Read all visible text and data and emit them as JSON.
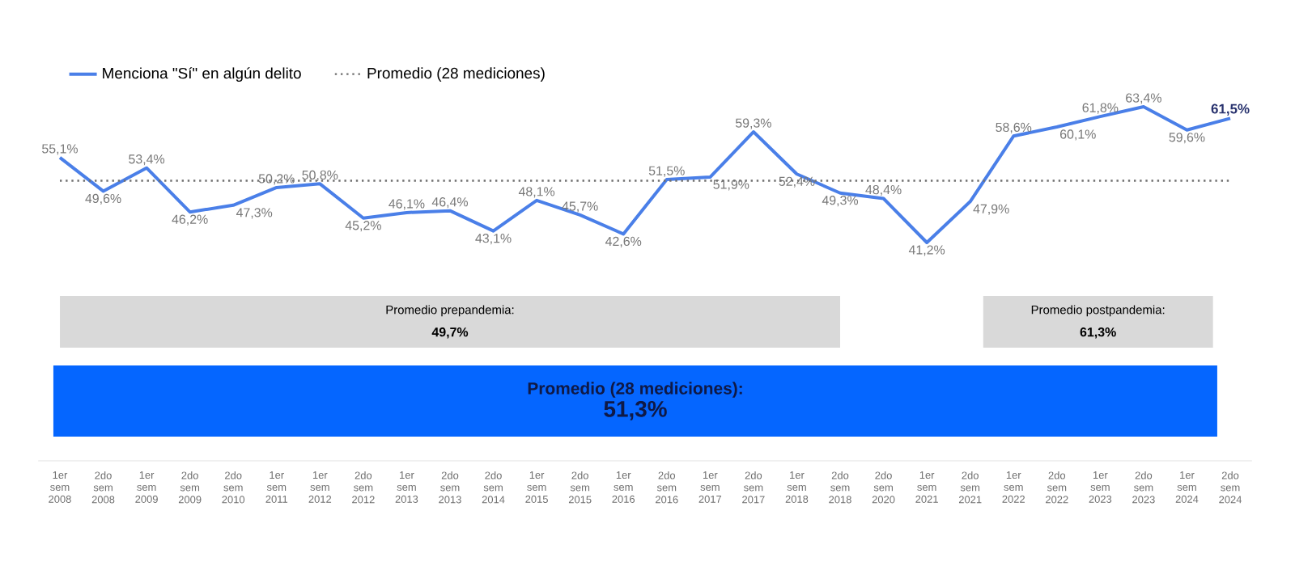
{
  "chart_data": {
    "type": "line",
    "categories": [
      "1er sem 2008",
      "2do sem 2008",
      "1er sem 2009",
      "2do sem 2009",
      "2do sem 2010",
      "1er sem 2011",
      "1er sem 2012",
      "2do sem 2012",
      "1er sem 2013",
      "2do sem 2013",
      "2do sem 2014",
      "1er sem 2015",
      "2do sem 2015",
      "1er sem 2016",
      "2do sem 2016",
      "1er sem 2017",
      "2do sem 2017",
      "1er sem 2018",
      "2do sem 2018",
      "2do sem 2020",
      "1er sem 2021",
      "2do sem 2021",
      "1er sem 2022",
      "2do sem 2022",
      "1er sem 2023",
      "2do sem 2023",
      "1er sem 2024",
      "2do sem 2024"
    ],
    "series": [
      {
        "name": "Menciona \"Sí\" en algún delito",
        "color": "#4a7fe8",
        "values": [
          55.1,
          49.6,
          53.4,
          46.2,
          47.3,
          50.2,
          50.8,
          45.2,
          46.1,
          46.4,
          43.1,
          48.1,
          45.7,
          42.6,
          51.5,
          51.9,
          59.3,
          52.4,
          49.3,
          48.4,
          41.2,
          47.9,
          58.6,
          60.1,
          61.8,
          63.4,
          59.6,
          61.5
        ],
        "value_labels": [
          "55,1%",
          "49,6%",
          "53,4%",
          "46,2%",
          "47,3%",
          "50,2%",
          "50,8%",
          "45,2%",
          "46,1%",
          "46,4%",
          "43,1%",
          "48,1%",
          "45,7%",
          "42,6%",
          "51,5%",
          "51,9%",
          "59,3%",
          "52,4%",
          "49,3%",
          "48,4%",
          "41,2%",
          "47,9%",
          "58,6%",
          "60,1%",
          "61,8%",
          "63,4%",
          "59,6%",
          "61,5%"
        ]
      }
    ],
    "ref_lines": [
      {
        "axis": "y",
        "value": 51.3,
        "label": "Promedio (28 mediciones)",
        "color": "#707070",
        "line_style": "dotted"
      }
    ],
    "annotations": [
      "Promedio prepandemia:",
      "49,7%",
      "Promedio postpandemia:",
      "61,3%",
      "Promedio  (28 mediciones):",
      "51,3%"
    ],
    "legend": "top left",
    "marker": "none",
    "line_style": "solid",
    "grid": false
  }
}
